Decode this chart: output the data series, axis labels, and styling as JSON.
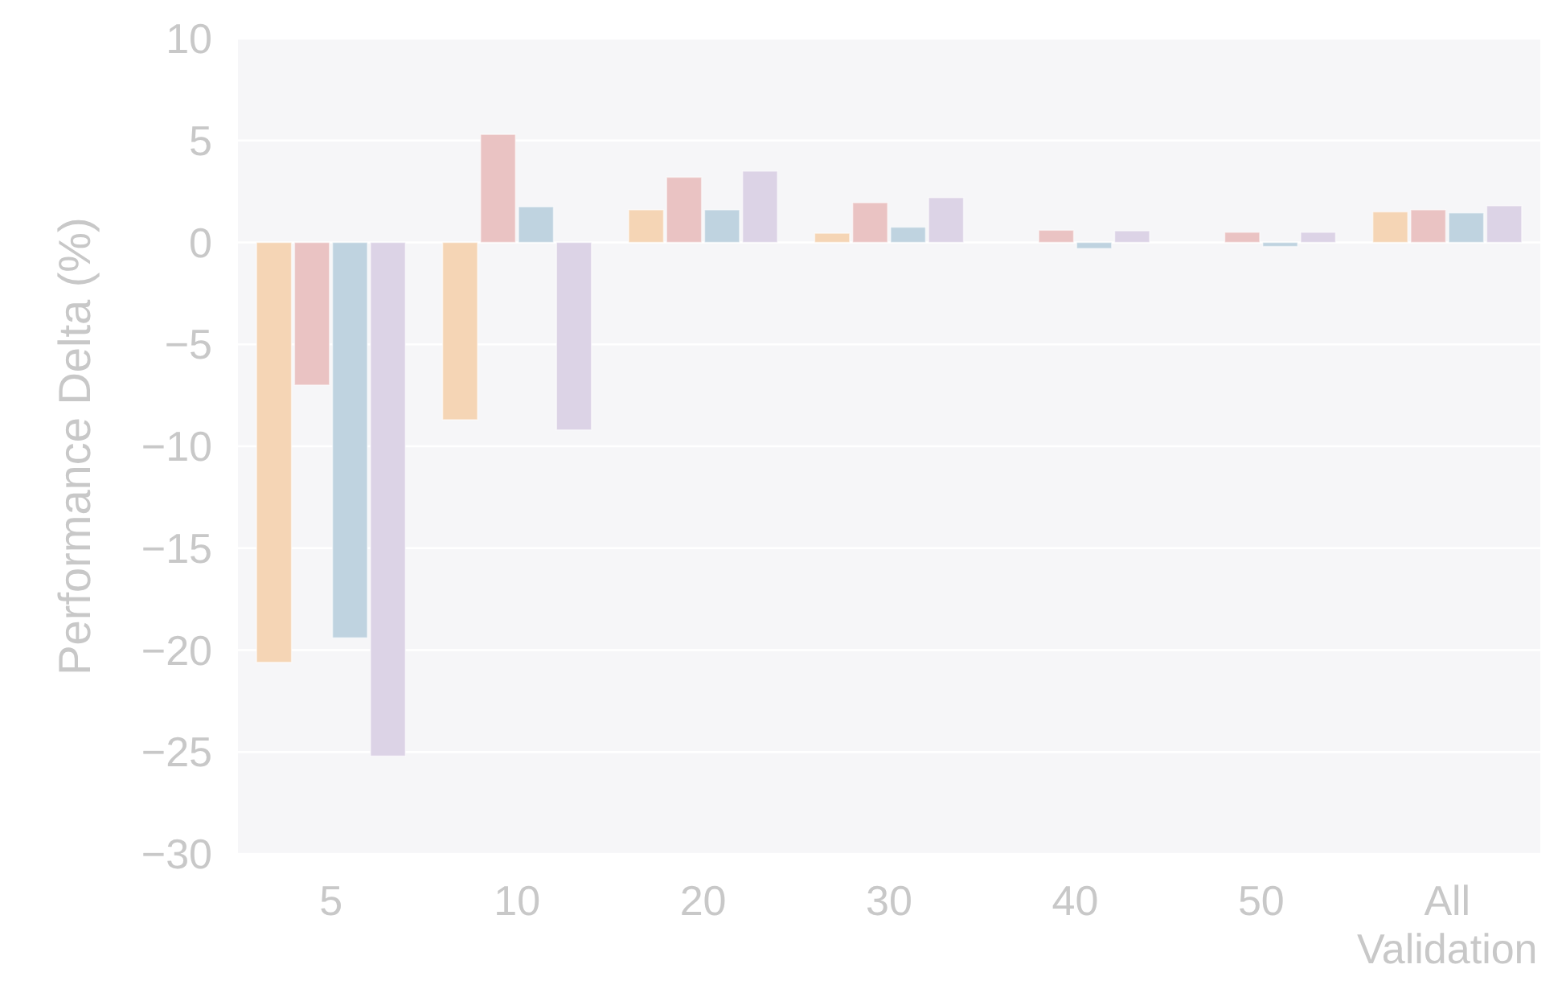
{
  "chart_data": {
    "type": "bar",
    "ylabel": "Performance Delta (%)",
    "categories": [
      "5",
      "10",
      "20",
      "30",
      "40",
      "50",
      "All\nValidation"
    ],
    "series": [
      {
        "color": "#f5d5b5",
        "values": [
          -20.6,
          -8.7,
          1.6,
          0.45,
          null,
          null,
          1.5
        ]
      },
      {
        "color": "#eac3c3",
        "values": [
          -7.0,
          5.3,
          3.2,
          1.95,
          0.6,
          0.5,
          1.6
        ]
      },
      {
        "color": "#bfd3e0",
        "values": [
          -19.4,
          1.75,
          1.6,
          0.75,
          -0.3,
          -0.2,
          1.45
        ]
      },
      {
        "color": "#dcd3e6",
        "values": [
          -25.2,
          -9.2,
          3.5,
          2.2,
          0.57,
          0.5,
          1.8
        ]
      }
    ],
    "ylim": [
      -30,
      10
    ],
    "yticks": [
      -30,
      -25,
      -20,
      -15,
      -10,
      -5,
      0,
      5,
      10
    ],
    "grid": "y"
  }
}
